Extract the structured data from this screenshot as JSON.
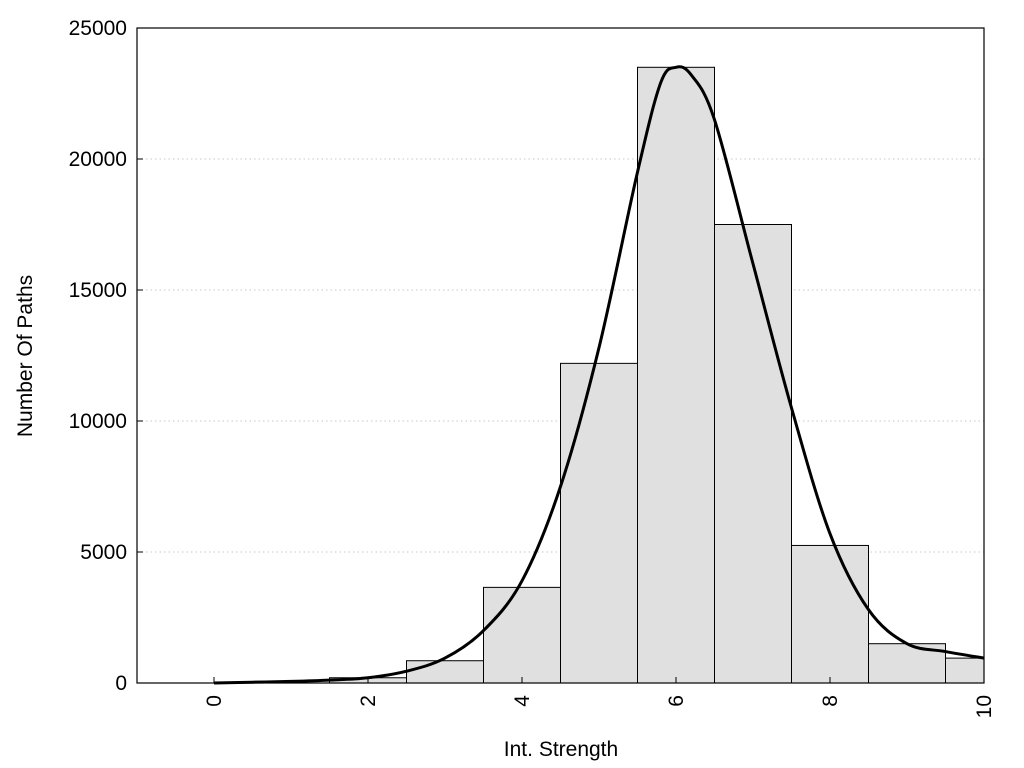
{
  "chart_data": {
    "type": "bar",
    "title": "",
    "xlabel": "Int. Strength",
    "ylabel": "Number Of Paths",
    "xlim": [
      -1,
      10
    ],
    "ylim": [
      0,
      25000
    ],
    "x_ticks": [
      0,
      2,
      4,
      6,
      8,
      10
    ],
    "y_ticks": [
      0,
      5000,
      10000,
      15000,
      20000,
      25000
    ],
    "grid": "horizontal dotted",
    "bins": [
      {
        "center": 0,
        "value": 0
      },
      {
        "center": 1,
        "value": 0
      },
      {
        "center": 2,
        "value": 200
      },
      {
        "center": 3,
        "value": 850
      },
      {
        "center": 4,
        "value": 3650
      },
      {
        "center": 5,
        "value": 12200
      },
      {
        "center": 6,
        "value": 23500
      },
      {
        "center": 7,
        "value": 17500
      },
      {
        "center": 8,
        "value": 5250
      },
      {
        "center": 9,
        "value": 1500
      },
      {
        "center": 10,
        "value": 950
      }
    ],
    "curve": {
      "x": [
        0,
        0.5,
        1,
        1.5,
        2,
        2.5,
        3,
        3.5,
        4,
        4.5,
        5,
        5.5,
        5.8,
        6,
        6.2,
        6.5,
        7,
        7.5,
        8,
        8.5,
        9,
        9.5,
        10
      ],
      "y": [
        0,
        30,
        60,
        110,
        200,
        450,
        950,
        2000,
        3900,
        7500,
        12800,
        19500,
        22900,
        23500,
        23200,
        21500,
        16000,
        10500,
        5700,
        2800,
        1500,
        1200,
        950
      ]
    },
    "colors": {
      "bar_fill": "#e0e0e0",
      "bar_stroke": "#000000",
      "curve": "#000000",
      "grid": "#c8c8c8"
    }
  }
}
